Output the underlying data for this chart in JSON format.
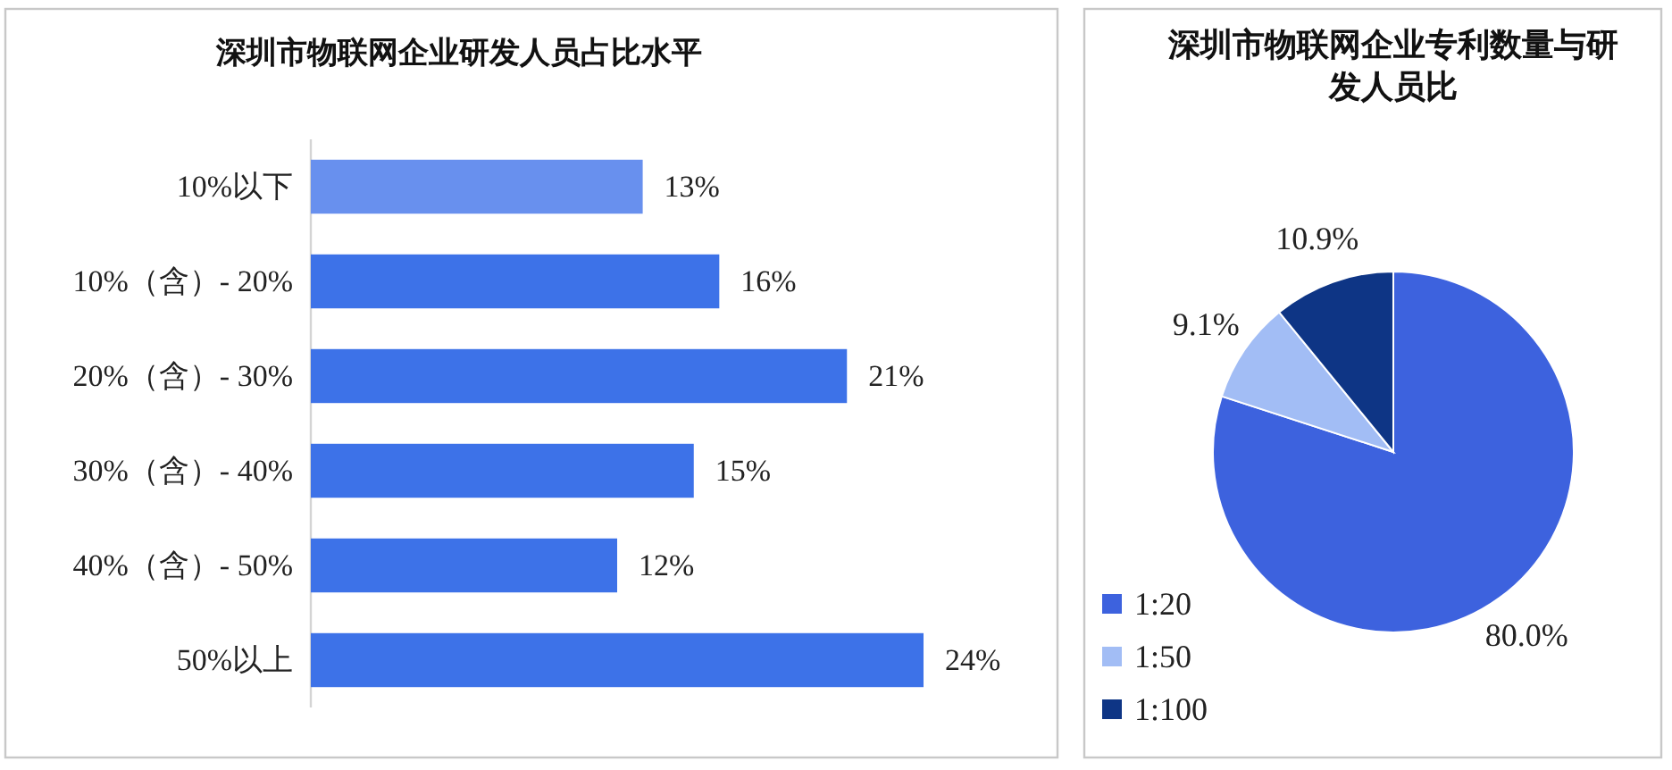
{
  "chart_data": [
    {
      "type": "bar",
      "title": "深圳市物联网企业研发人员占比水平",
      "orientation": "horizontal",
      "categories": [
        "10%以下",
        "10%（含）- 20%",
        "20%（含）- 30%",
        "30%（含）- 40%",
        "40%（含）- 50%",
        "50%以上"
      ],
      "values": [
        13,
        16,
        21,
        15,
        12,
        24
      ],
      "colors": [
        "#6890ee",
        "#3d72e8",
        "#3d72e8",
        "#3d72e8",
        "#3d72e8",
        "#3d72e8"
      ],
      "value_labels": [
        "13%",
        "16%",
        "21%",
        "15%",
        "12%",
        "24%"
      ]
    },
    {
      "type": "pie",
      "title": "深圳市物联网企业专利数量与研发人员比",
      "categories": [
        "1:20",
        "1:50",
        "1:100"
      ],
      "values": [
        80.0,
        9.1,
        10.9
      ],
      "colors": [
        "#3d62de",
        "#a2bdf5",
        "#0e3585"
      ],
      "value_labels": [
        "80.0%",
        "9.1%",
        "10.9%"
      ],
      "legend": "bottom left"
    }
  ]
}
